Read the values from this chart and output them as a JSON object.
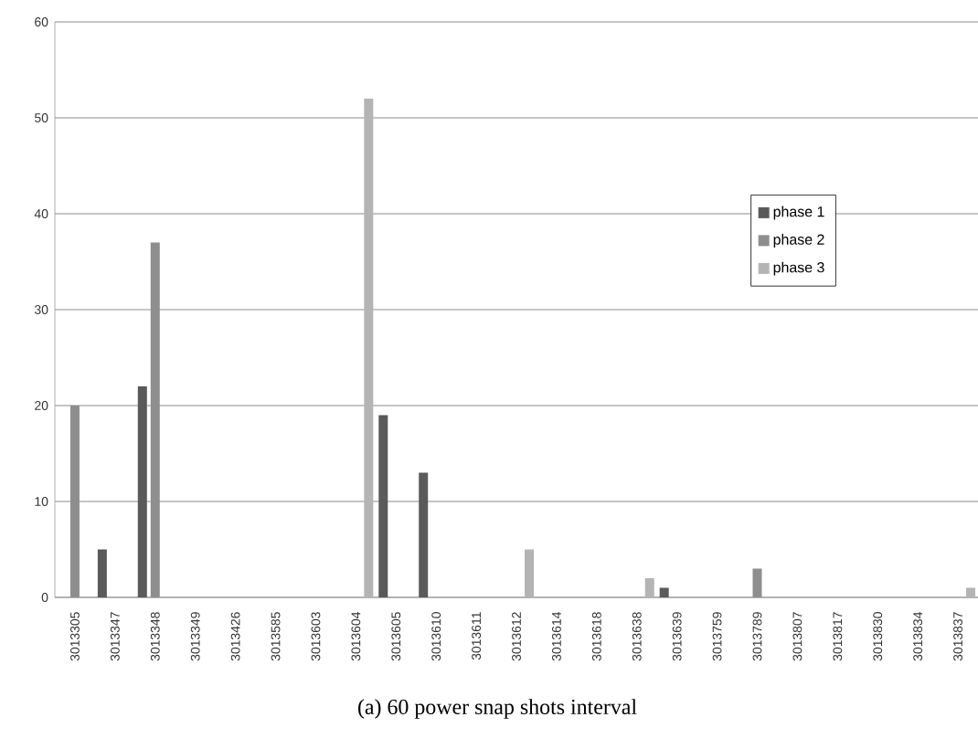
{
  "chart_data": {
    "type": "bar",
    "title": "(a) 60 power snap shots interval",
    "categories": [
      "3013305",
      "3013347",
      "3013348",
      "3013349",
      "3013426",
      "3013585",
      "3013603",
      "3013604",
      "3013605",
      "3013610",
      "3013611",
      "3013612",
      "3013614",
      "3013618",
      "3013638",
      "3013639",
      "3013759",
      "3013789",
      "3013807",
      "3013817",
      "3013830",
      "3013834",
      "3013837"
    ],
    "series": [
      {
        "name": "phase 1",
        "color": "#5a5a5a",
        "values": [
          0,
          5,
          22,
          0,
          0,
          0,
          0,
          0,
          19,
          13,
          0,
          0,
          0,
          0,
          0,
          1,
          0,
          0,
          0,
          0,
          0,
          0,
          0
        ]
      },
      {
        "name": "phase 2",
        "color": "#8e8e8e",
        "values": [
          20,
          0,
          37,
          0,
          0,
          0,
          0,
          0,
          0,
          0,
          0,
          0,
          0,
          0,
          0,
          0,
          0,
          3,
          0,
          0,
          0,
          0,
          0
        ]
      },
      {
        "name": "phase 3",
        "color": "#b4b4b4",
        "values": [
          0,
          0,
          0,
          0,
          0,
          0,
          0,
          52,
          0,
          0,
          0,
          5,
          0,
          0,
          2,
          0,
          0,
          0,
          0,
          0,
          0,
          0,
          1
        ]
      }
    ],
    "ylim": [
      0,
      60
    ],
    "yticks": [
      0,
      10,
      20,
      30,
      40,
      50,
      60
    ],
    "grid": "y",
    "legend": "right"
  }
}
